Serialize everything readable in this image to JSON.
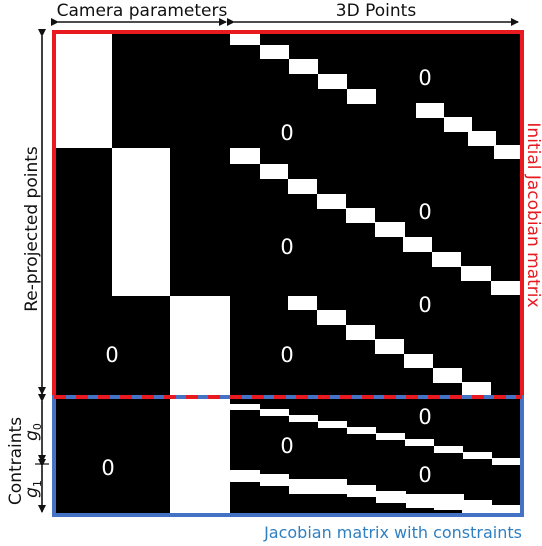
{
  "labels": {
    "camera_parameters": "Camera parameters",
    "points_3d": "3D Points",
    "reprojected_points": "Re-projected points",
    "contraints": "Contraints",
    "g0_base": "g",
    "g0_sub": "0",
    "g1_base": "g",
    "g1_sub": "1",
    "initial_jacobian": "Initial Jacobian matrix",
    "jacobian_constraints": "Jacobian matrix with constraints"
  },
  "zeros": [
    "0",
    "0",
    "0",
    "0",
    "0",
    "0",
    "0",
    "0",
    "0",
    "0",
    "0"
  ],
  "colors": {
    "background": "#000000",
    "block": "#ffffff",
    "initial_border": "#e8191f",
    "constraint_border": "#4472c4",
    "constraint_label": "#2f7fc1",
    "initial_label": "#e8191f",
    "text": "#111111"
  }
}
